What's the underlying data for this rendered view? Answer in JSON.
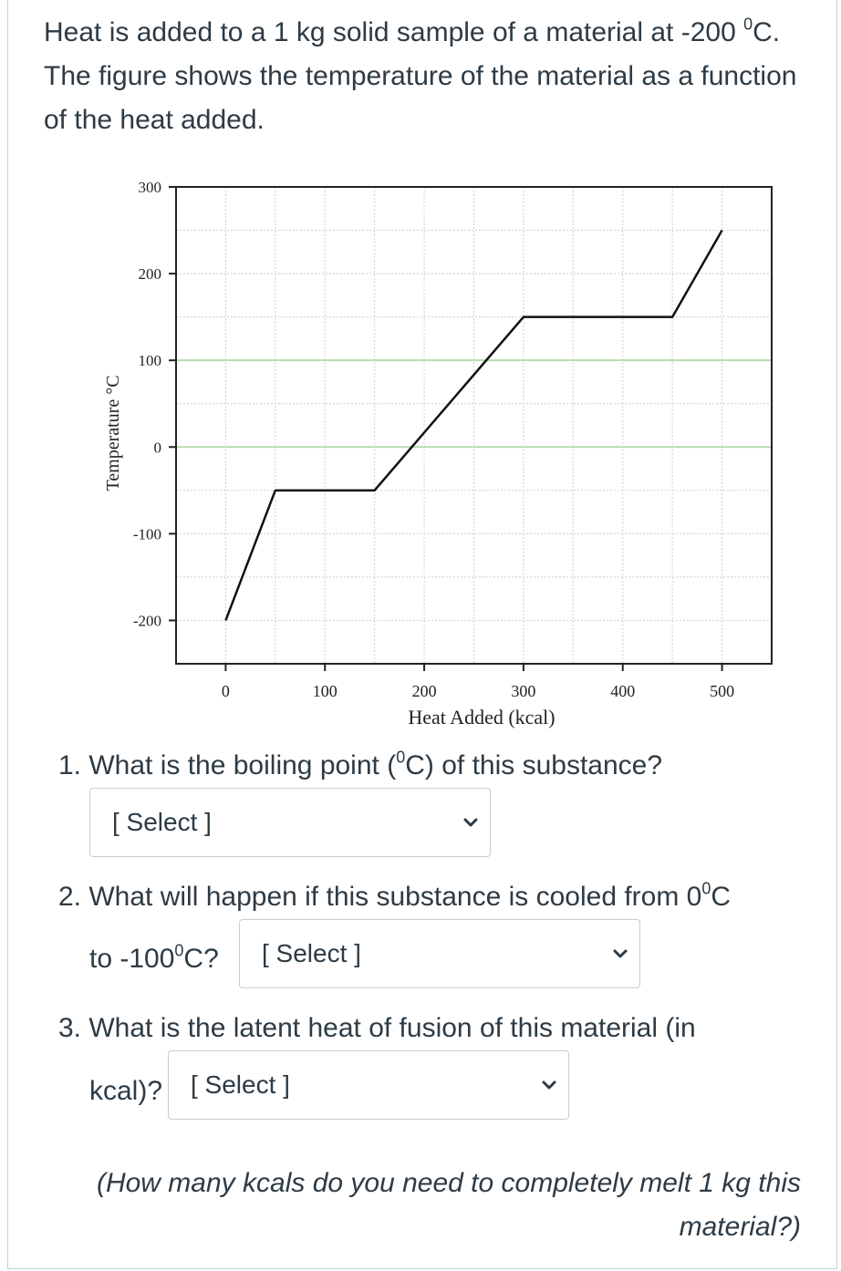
{
  "intro": {
    "part1": "Heat is added to a 1 kg solid sample of a material at -200 ",
    "deg": "0",
    "part2": "C. The figure shows the temperature of the material as a function of the heat added."
  },
  "chart_data": {
    "type": "line",
    "xlabel": "Heat Added (kcal)",
    "ylabel": "Temperature °C",
    "xlim": [
      -50,
      550
    ],
    "ylim": [
      -250,
      300
    ],
    "x_ticks": [
      "0",
      "100",
      "200",
      "300",
      "400",
      "500"
    ],
    "y_ticks": [
      "300",
      "200",
      "100",
      "0",
      "-100",
      "-200"
    ],
    "grid": true,
    "highlighted_gridlines": [
      100,
      0
    ],
    "series": [
      {
        "x": [
          0,
          50,
          150,
          300,
          450,
          500
        ],
        "y": [
          -200,
          -50,
          -50,
          150,
          150,
          250
        ]
      }
    ],
    "colors": {
      "line": "#111111",
      "grid": "#d6d6d6",
      "highlight_grid": "#b7dcae"
    }
  },
  "questions": [
    {
      "pre": "1. What is the boiling point (",
      "deg": "0",
      "post": "C) of this substance?"
    },
    {
      "pre": "2. What will happen if this substance is cooled from 0",
      "deg": "0",
      "post": "C",
      "line2_pre": "to -100",
      "line2_deg": "0",
      "line2_post": "C?"
    },
    {
      "text": "3. What is the latent heat of fusion of this material (in",
      "line2": "kcal)?"
    }
  ],
  "selects": [
    {
      "selected": "[ Select ]",
      "icon": "chevron-down-icon"
    },
    {
      "selected": "[ Select ]",
      "icon": "chevron-down-icon"
    },
    {
      "selected": "[ Select ]",
      "icon": "chevron-down-icon"
    }
  ],
  "hint": "(How many kcals do you need to completely melt 1 kg this material?)"
}
